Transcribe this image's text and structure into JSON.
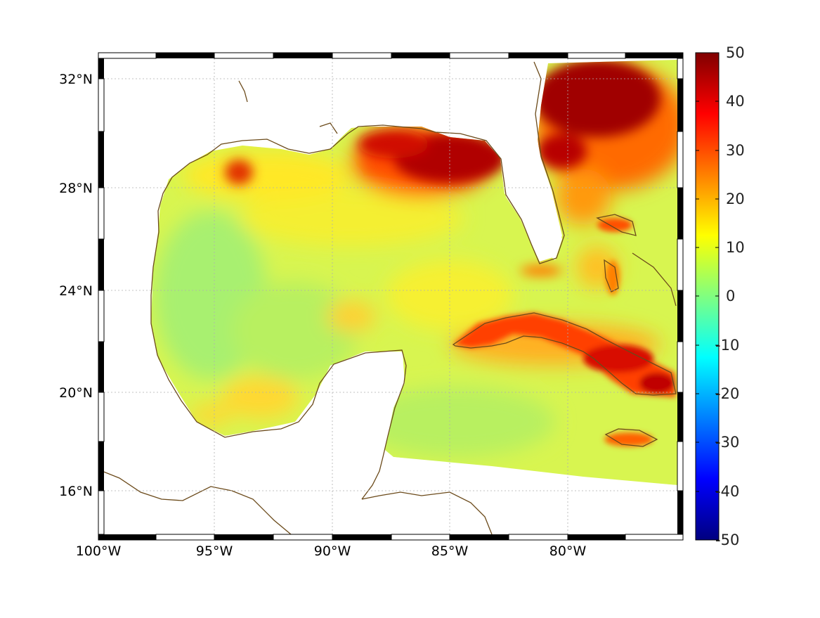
{
  "map": {
    "longitude_labels": [
      "100°W",
      "95°W",
      "90°W",
      "85°W",
      "80°W"
    ],
    "latitude_labels": [
      "32°N",
      "28°N",
      "24°N",
      "20°N",
      "16°N"
    ],
    "colorbar": {
      "tick_labels": [
        "50",
        "40",
        "30",
        "20",
        "10",
        "0",
        "-10",
        "-20",
        "-30",
        "-40",
        "-50"
      ],
      "min": -50,
      "max": 50,
      "colormap": "jet"
    },
    "colors": {
      "land": "#ffffff",
      "coastline": "#6b4a1a",
      "frame_dark": "#000000",
      "frame_light": "#ffffff",
      "grid": "#b0b0b0"
    }
  }
}
